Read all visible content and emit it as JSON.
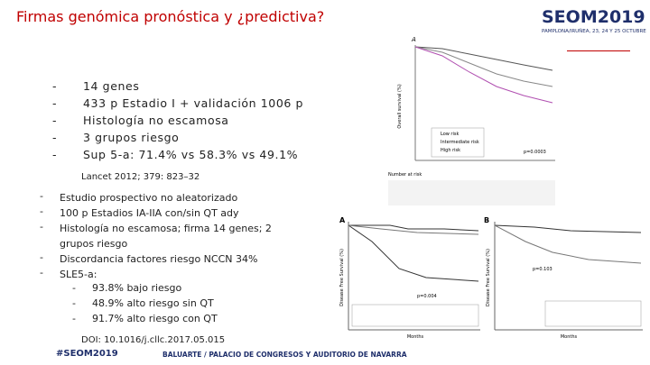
{
  "header": {
    "title": "Firmas genómica pronóstica y ¿predictiva?"
  },
  "logo": {
    "name": "SEOM2019",
    "place": "PAMPLONA/IRUÑEA, 23, 24 Y 25 OCTUBRE"
  },
  "list1": {
    "items": [
      "14 genes",
      "433 p Estadio I + validación 1006 p",
      "Histología no escamosa",
      "3 grupos riesgo",
      "Sup 5-a: 71.4% vs 58.3% vs 49.1%"
    ],
    "citation": "Lancet 2012; 379: 823–32"
  },
  "list2": {
    "items": [
      "Estudio prospectivo no aleatorizado",
      "100 p Estadios IA-IIA con/sin QT ady",
      "Histología no escamosa; firma 14 genes; 2 grupos riesgo",
      "Discordancia factores riesgo NCCN 34%",
      "SLE5-a:"
    ],
    "subitems": [
      "93.8% bajo riesgo",
      "48.9% alto riesgo sin QT",
      "91.7% alto riesgo con QT"
    ],
    "citation": "DOI: 10.1016/j.cllc.2017.05.015"
  },
  "figure1": {
    "panel": "A",
    "ylabel": "Overall survival (%)",
    "legend": [
      "Low risk",
      "Intermediate risk",
      "High risk"
    ],
    "pvalue": "p=0.0003",
    "risk_title": "Number at risk"
  },
  "figure2": {
    "panels": [
      "A",
      "B"
    ],
    "ylabel": "Disease Free Survival (%)",
    "xlabel": "Months",
    "pvalues": [
      "p=0.004",
      "p=0.103"
    ]
  },
  "footer": {
    "hashtag": "#SEOM2019",
    "venue": "BALUARTE / PALACIO DE CONGRESOS Y AUDITORIO DE NAVARRA"
  }
}
